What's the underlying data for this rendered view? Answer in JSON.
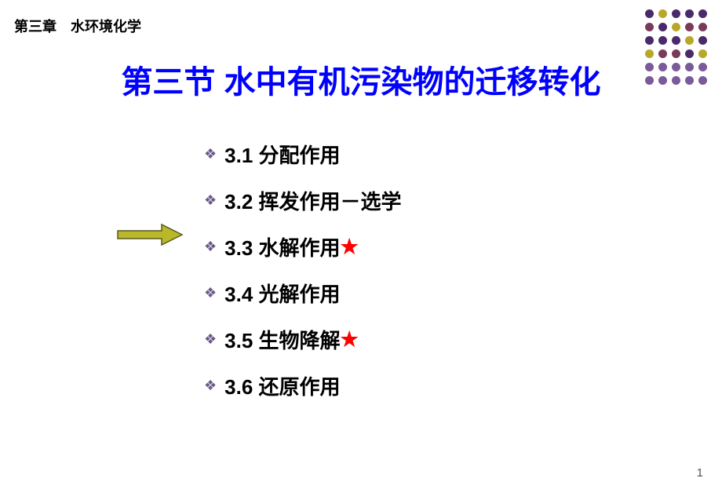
{
  "chapter_header": "第三章　水环境化学",
  "title": "第三节  水中有机污染物的迁移转化",
  "toc": {
    "items": [
      {
        "label": "3.1 分配作用",
        "starred": false,
        "highlighted": false
      },
      {
        "label": "3.2 挥发作用－选学",
        "starred": false,
        "highlighted": false
      },
      {
        "label": "3.3 水解作用",
        "starred": true,
        "highlighted": true
      },
      {
        "label": "3.4 光解作用",
        "starred": false,
        "highlighted": false
      },
      {
        "label": "3.5 生物降解",
        "starred": true,
        "highlighted": false
      },
      {
        "label": "3.6 还原作用",
        "starred": false,
        "highlighted": false
      }
    ],
    "bullet_color": "#6a5a8a",
    "star_color": "#ff0000"
  },
  "dot_pattern": {
    "colors": {
      "c1": "#4a2a6a",
      "c2": "#b8a82a",
      "c3": "#7a3a5a",
      "c4": "#7a5a9a"
    },
    "rows": [
      [
        "c1",
        "c2",
        "c1",
        "c1",
        "c1"
      ],
      [
        "c3",
        "c1",
        "c2",
        "c3",
        "c3"
      ],
      [
        "c1",
        "c1",
        "c1",
        "c2",
        "c1"
      ],
      [
        "c2",
        "c3",
        "c3",
        "c1",
        "c2"
      ],
      [
        "c4",
        "c4",
        "c4",
        "c4",
        "c4"
      ],
      [
        "c4",
        "c4",
        "c4",
        "c4",
        "c4"
      ]
    ]
  },
  "arrow": {
    "fill_color": "#b8b82a",
    "stroke_color": "#5a5a1a"
  },
  "page_number": "1"
}
